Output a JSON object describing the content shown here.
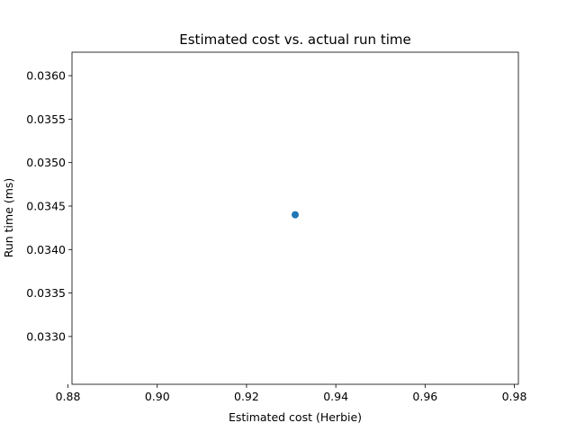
{
  "chart_data": {
    "type": "scatter",
    "title": "Estimated cost vs. actual run time",
    "xlabel": "Estimated cost (Herbie)",
    "ylabel": "Run time (ms)",
    "xlim": [
      0.8809,
      0.9809
    ],
    "ylim": [
      0.03245,
      0.03627
    ],
    "xticks": [
      0.88,
      0.9,
      0.92,
      0.94,
      0.96,
      0.98
    ],
    "xtick_labels": [
      "0.88",
      "0.90",
      "0.92",
      "0.94",
      "0.96",
      "0.98"
    ],
    "yticks": [
      0.033,
      0.0335,
      0.034,
      0.0345,
      0.035,
      0.0355,
      0.036
    ],
    "ytick_labels": [
      "0.0330",
      "0.0335",
      "0.0340",
      "0.0345",
      "0.0350",
      "0.0355",
      "0.0360"
    ],
    "grid": false,
    "points": [
      {
        "x": 0.9309,
        "y": 0.0344,
        "color": "#1f77b4"
      }
    ]
  }
}
